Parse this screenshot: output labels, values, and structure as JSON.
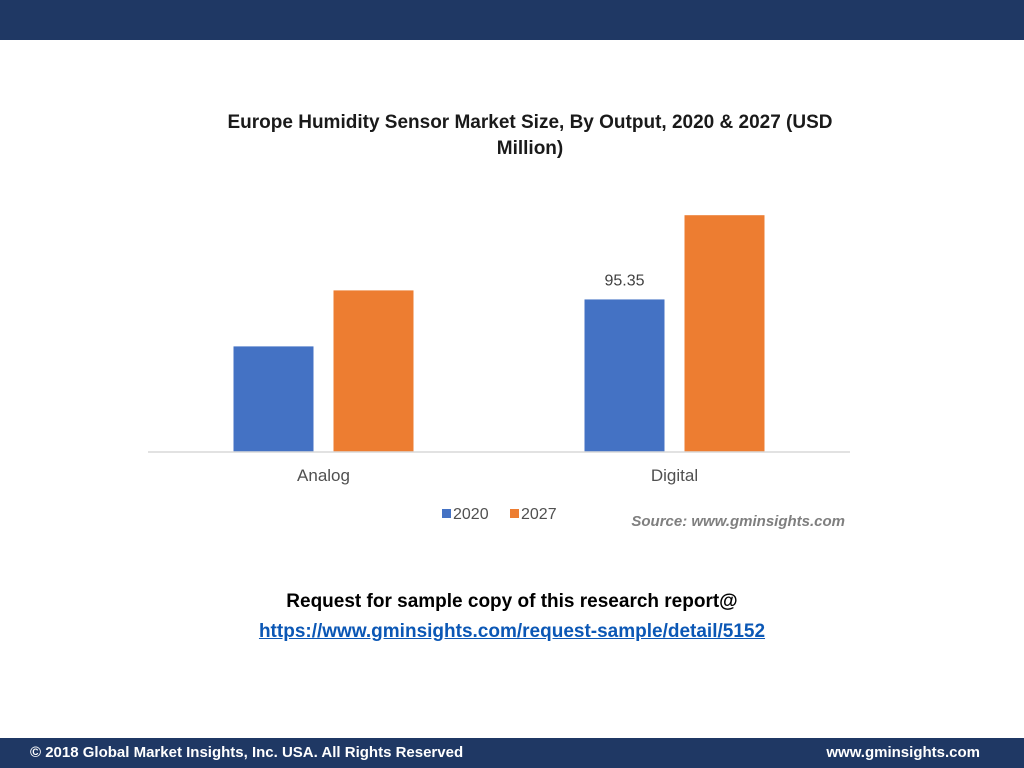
{
  "chart_data": {
    "type": "bar",
    "title": "Europe Humidity  Sensor Market Size, By Output, 2020 & 2027 (USD Million)",
    "categories": [
      "Analog",
      "Digital"
    ],
    "series": [
      {
        "name": "2020",
        "values": [
          66,
          95.35
        ]
      },
      {
        "name": "2027",
        "values": [
          101,
          148
        ]
      }
    ],
    "data_labels": [
      {
        "series": 0,
        "category": 1,
        "text": "95.35"
      }
    ],
    "ylim": [
      0,
      160
    ],
    "colors": [
      "#4472c4",
      "#ed7d31"
    ],
    "axis_color": "#d9d9d9",
    "grid": false,
    "legend_position": "bottom",
    "source": "Source: www.gminsights.com"
  },
  "cta": {
    "text": "Request for sample copy of this research report@",
    "link": "https://www.gminsights.com/request-sample/detail/5152"
  },
  "footer": {
    "copyright": "© 2018 Global Market Insights, Inc. USA. All Rights Reserved",
    "website": "www.gminsights.com"
  },
  "theme": {
    "bar_color": "#1f3864"
  }
}
